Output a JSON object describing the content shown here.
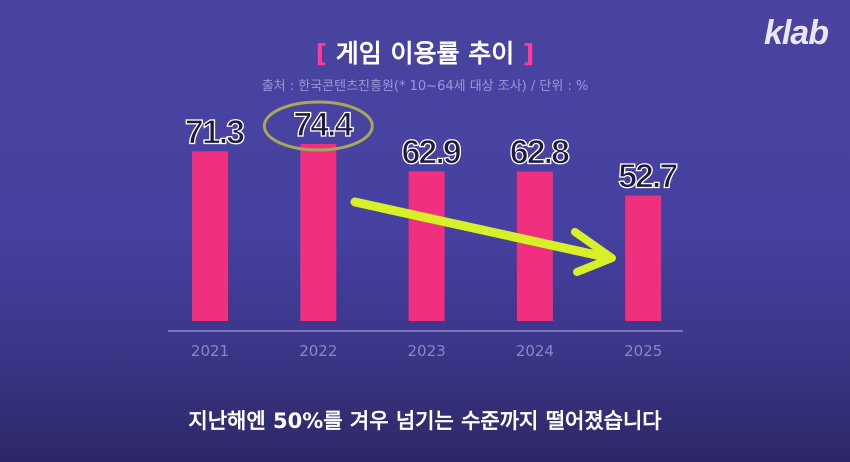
{
  "logo": "klab",
  "chart_data": {
    "type": "bar",
    "title": "게임 이용률 추이",
    "title_brackets": [
      "[",
      "]"
    ],
    "source": "출처 : 한국콘텐츠진흥원(* 10~64세 대상 조사) / 단위 : %",
    "categories": [
      "2021",
      "2022",
      "2023",
      "2024",
      "2025"
    ],
    "values": [
      71.3,
      74.4,
      62.9,
      62.8,
      52.7
    ],
    "data_labels": [
      "71.3",
      "74.4",
      "62.9",
      "62.8",
      "52.7"
    ],
    "highlighted": "2022",
    "annotation": "downward arrow from 2022 to 2025",
    "ylim": [
      0,
      80
    ],
    "bar_color": "#f0307e",
    "xlabel": "",
    "ylabel": "",
    "grid": false
  },
  "caption": "지난해엔 50%를 겨우 넘기는 수준까지 떨어졌습니다"
}
